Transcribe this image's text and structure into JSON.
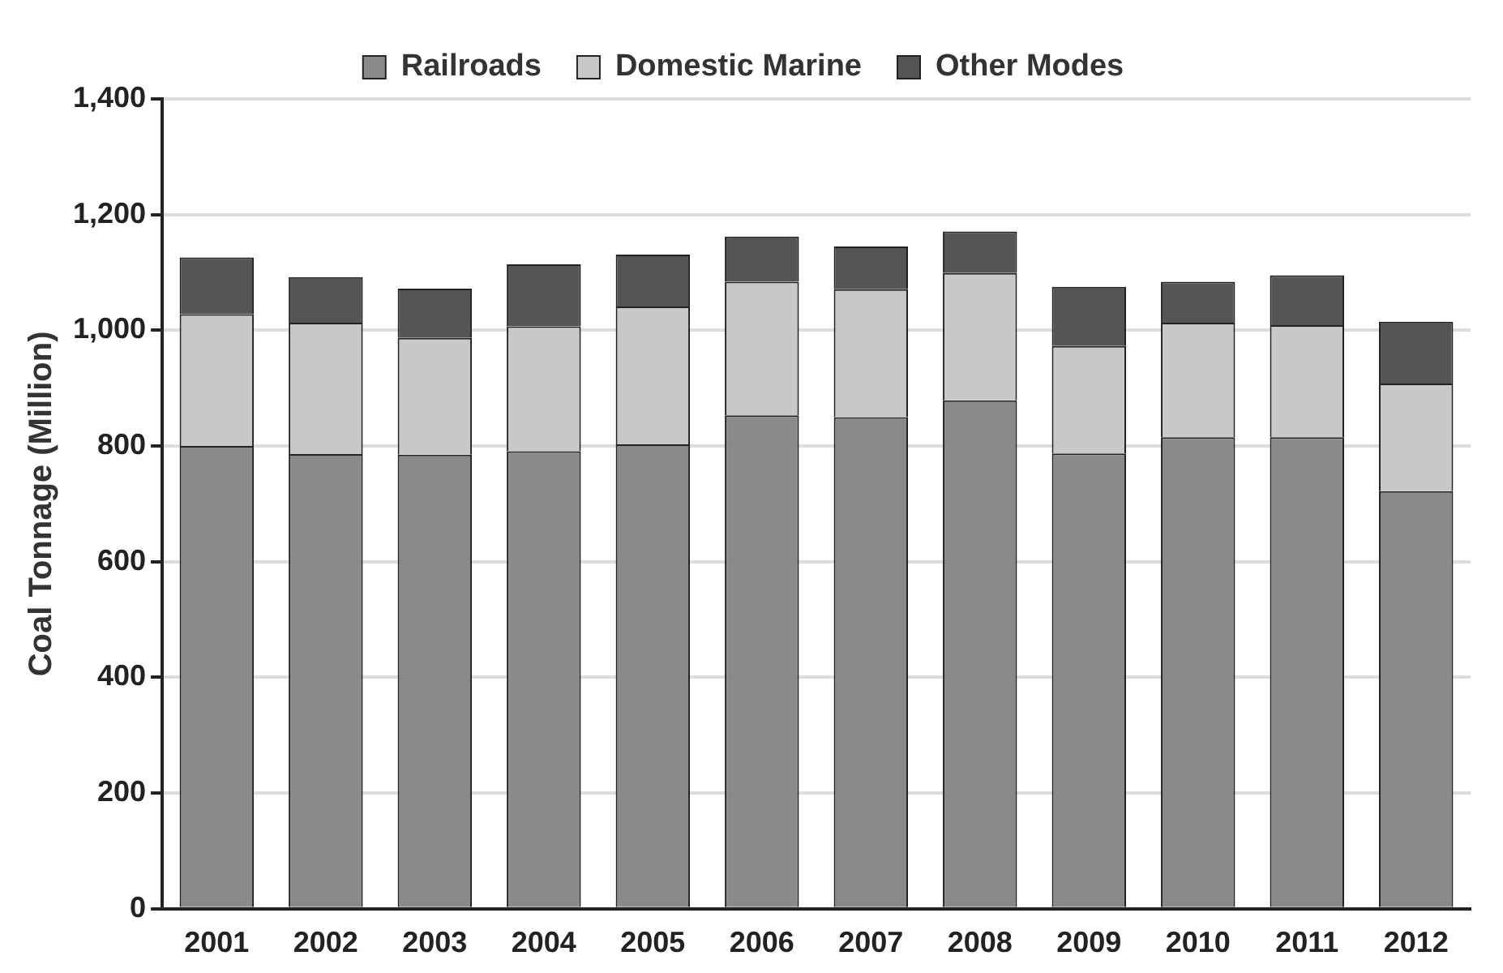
{
  "chart_data": {
    "type": "bar",
    "stacked": true,
    "ylabel": "Coal Tonnage (Million)",
    "categories": [
      "2001",
      "2002",
      "2003",
      "2004",
      "2005",
      "2006",
      "2007",
      "2008",
      "2009",
      "2010",
      "2011",
      "2012"
    ],
    "series": [
      {
        "name": "Railroads",
        "color": "#8a8a8a",
        "values": [
          800,
          786,
          785,
          791,
          803,
          853,
          850,
          879,
          787,
          815,
          815,
          722
        ]
      },
      {
        "name": "Domestic Marine",
        "color": "#c8c8c8",
        "values": [
          228,
          227,
          202,
          216,
          238,
          231,
          221,
          220,
          186,
          198,
          194,
          186
        ]
      },
      {
        "name": "Other Modes",
        "color": "#555555",
        "values": [
          98,
          79,
          85,
          107,
          90,
          78,
          74,
          72,
          102,
          71,
          86,
          107
        ]
      }
    ],
    "ylim": [
      0,
      1400
    ],
    "yticks": [
      0,
      {
        "value": 200,
        "label": "200"
      },
      {
        "value": 400,
        "label": "400"
      },
      {
        "value": 600,
        "label": "600"
      },
      {
        "value": 800,
        "label": "800"
      },
      {
        "value": 1000,
        "label": "1,000"
      },
      {
        "value": 1200,
        "label": "1,200"
      },
      {
        "value": 1400,
        "label": "1,400"
      }
    ],
    "grid": "y",
    "legend": "top"
  }
}
